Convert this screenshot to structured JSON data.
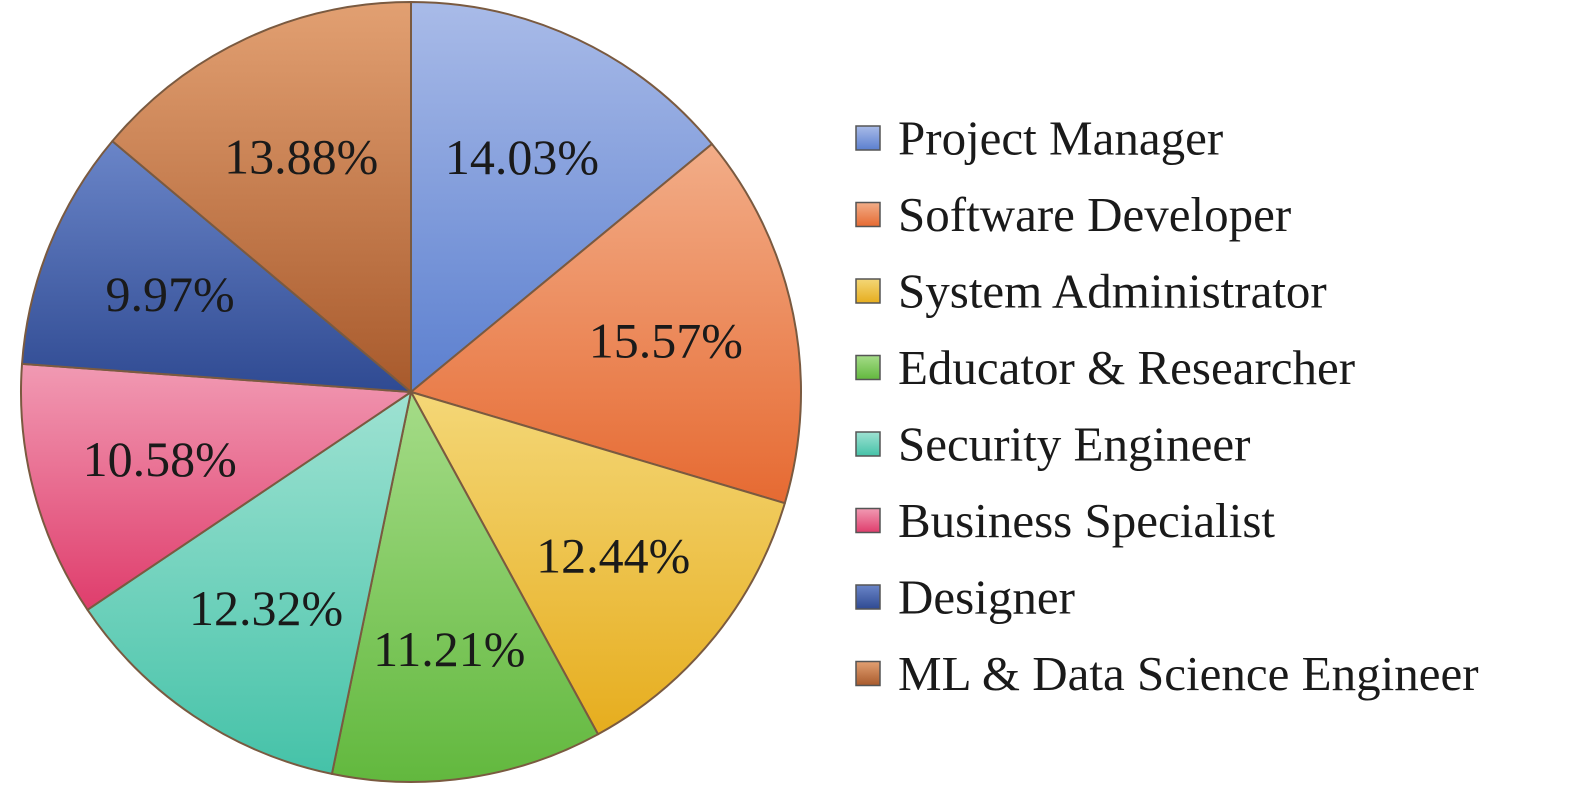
{
  "chart_data": {
    "type": "pie",
    "title": "",
    "slices": [
      {
        "name": "Project Manager",
        "value": 14.03,
        "label": "14.03%",
        "color": "#5b7fcf",
        "color_light": "#a9bbe8"
      },
      {
        "name": "Software Developer",
        "value": 15.57,
        "label": "15.57%",
        "color": "#e66a32",
        "color_light": "#f2ad88"
      },
      {
        "name": "System Administrator",
        "value": 12.44,
        "label": "12.44%",
        "color": "#e6ad1e",
        "color_light": "#f4d777"
      },
      {
        "name": "Educator & Researcher",
        "value": 11.21,
        "label": "11.21%",
        "color": "#62b83e",
        "color_light": "#a5dc88"
      },
      {
        "name": "Security Engineer",
        "value": 12.32,
        "label": "12.32%",
        "color": "#45c2a8",
        "color_light": "#9ee2d2"
      },
      {
        "name": "Business Specialist",
        "value": 10.58,
        "label": "10.58%",
        "color": "#df3d6c",
        "color_light": "#f19ab3"
      },
      {
        "name": "Designer",
        "value": 9.97,
        "label": "9.97%",
        "color": "#2f4a92",
        "color_light": "#6a85c8"
      },
      {
        "name": "ML & Data Science Engineer",
        "value": 13.88,
        "label": "13.88%",
        "color": "#a85a2c",
        "color_light": "#e2a072"
      }
    ],
    "legend_position": "right",
    "start_angle": "top, clockwise"
  }
}
